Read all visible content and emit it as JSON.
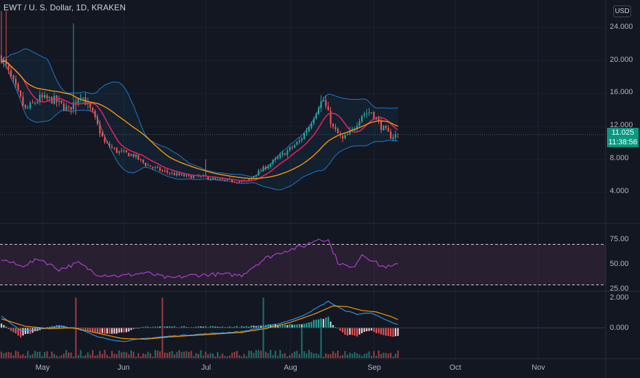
{
  "header": {
    "title": "EWT / U. S. Dollar, 1D, KRAKEN",
    "currency_button": "USD"
  },
  "price_tag": {
    "price": "11.025",
    "countdown": "11:38:56"
  },
  "colors": {
    "background": "#131722",
    "grid": "#1e222d",
    "up": "#26a69a",
    "down": "#ef5350",
    "bb": "#2196f3",
    "ma_fast": "#e91e63",
    "ma_slow": "#ff9800",
    "rsi": "#b03fd0",
    "macd": "#2196f3",
    "signal": "#ff9800",
    "tag": "#089981"
  },
  "axes": {
    "price_labels": [
      "24.000",
      "20.000",
      "16.000",
      "12.000",
      "8.000",
      "4.000"
    ],
    "rsi_labels": [
      "75.00",
      "50.00",
      "25.00"
    ],
    "macd_labels": [
      "2.000",
      "0.000"
    ],
    "time_labels": [
      "May",
      "Jun",
      "Jul",
      "Aug",
      "Sep",
      "Oct",
      "Nov"
    ]
  },
  "chart_data": {
    "type": "candlestick",
    "symbol": "EWT / U. S. Dollar",
    "interval": "1D",
    "exchange": "KRAKEN",
    "ylim": [
      1.5,
      26
    ],
    "rsi_ylim": [
      25,
      75
    ],
    "last_price": 11.025,
    "price_anchors": [
      [
        0,
        20.5
      ],
      [
        5,
        17.2
      ],
      [
        10,
        14.0
      ],
      [
        16,
        15.4
      ],
      [
        22,
        15.2
      ],
      [
        28,
        14.0
      ],
      [
        33,
        16.0
      ],
      [
        38,
        13.5
      ],
      [
        43,
        10.0
      ],
      [
        48,
        9.0
      ],
      [
        55,
        8.5
      ],
      [
        60,
        7.4
      ],
      [
        66,
        6.7
      ],
      [
        72,
        6.2
      ],
      [
        78,
        5.9
      ],
      [
        84,
        5.9
      ],
      [
        90,
        5.5
      ],
      [
        96,
        5.4
      ],
      [
        102,
        5.3
      ],
      [
        106,
        6.3
      ],
      [
        112,
        7.5
      ],
      [
        118,
        8.8
      ],
      [
        124,
        10.2
      ],
      [
        128,
        12.0
      ],
      [
        132,
        14.6
      ],
      [
        134,
        15.2
      ],
      [
        138,
        11.8
      ],
      [
        142,
        10.4
      ],
      [
        146,
        11.5
      ],
      [
        150,
        13.5
      ],
      [
        154,
        13.8
      ],
      [
        158,
        12.0
      ],
      [
        162,
        10.8
      ],
      [
        165,
        11.025
      ]
    ],
    "rsi_anchors": [
      [
        0,
        57
      ],
      [
        8,
        48
      ],
      [
        16,
        57
      ],
      [
        24,
        44
      ],
      [
        32,
        52
      ],
      [
        40,
        38
      ],
      [
        50,
        36
      ],
      [
        60,
        40
      ],
      [
        70,
        33
      ],
      [
        80,
        37
      ],
      [
        90,
        38
      ],
      [
        100,
        37
      ],
      [
        104,
        46
      ],
      [
        110,
        58
      ],
      [
        118,
        67
      ],
      [
        126,
        73
      ],
      [
        132,
        82
      ],
      [
        136,
        80
      ],
      [
        140,
        53
      ],
      [
        146,
        45
      ],
      [
        150,
        63
      ],
      [
        154,
        56
      ],
      [
        158,
        48
      ],
      [
        162,
        47
      ],
      [
        165,
        50
      ]
    ],
    "macd_anchors": [
      [
        0,
        0.8
      ],
      [
        8,
        -0.2
      ],
      [
        16,
        -0.1
      ],
      [
        24,
        0.1
      ],
      [
        32,
        -0.05
      ],
      [
        40,
        -0.6
      ],
      [
        50,
        -0.9
      ],
      [
        60,
        -0.7
      ],
      [
        70,
        -0.55
      ],
      [
        80,
        -0.45
      ],
      [
        90,
        -0.35
      ],
      [
        100,
        -0.25
      ],
      [
        108,
        0.0
      ],
      [
        116,
        0.3
      ],
      [
        124,
        0.7
      ],
      [
        130,
        1.2
      ],
      [
        136,
        1.75
      ],
      [
        142,
        1.2
      ],
      [
        148,
        0.9
      ],
      [
        154,
        1.0
      ],
      [
        160,
        0.5
      ],
      [
        165,
        0.2
      ]
    ],
    "signal_anchors": [
      [
        0,
        0.6
      ],
      [
        10,
        0.1
      ],
      [
        20,
        -0.05
      ],
      [
        30,
        0.0
      ],
      [
        40,
        -0.35
      ],
      [
        50,
        -0.7
      ],
      [
        60,
        -0.75
      ],
      [
        70,
        -0.6
      ],
      [
        80,
        -0.5
      ],
      [
        90,
        -0.4
      ],
      [
        100,
        -0.3
      ],
      [
        110,
        -0.05
      ],
      [
        120,
        0.35
      ],
      [
        130,
        0.9
      ],
      [
        138,
        1.45
      ],
      [
        144,
        1.4
      ],
      [
        150,
        1.15
      ],
      [
        156,
        1.05
      ],
      [
        162,
        0.75
      ],
      [
        165,
        0.55
      ]
    ],
    "volume_spikes": [
      [
        31,
        1.0
      ],
      [
        67,
        1.0
      ],
      [
        109,
        1.0
      ],
      [
        125,
        0.55
      ],
      [
        133,
        0.5
      ]
    ],
    "ma_fast_length": 10,
    "ma_slow_length": 30,
    "bb_length": 20
  }
}
